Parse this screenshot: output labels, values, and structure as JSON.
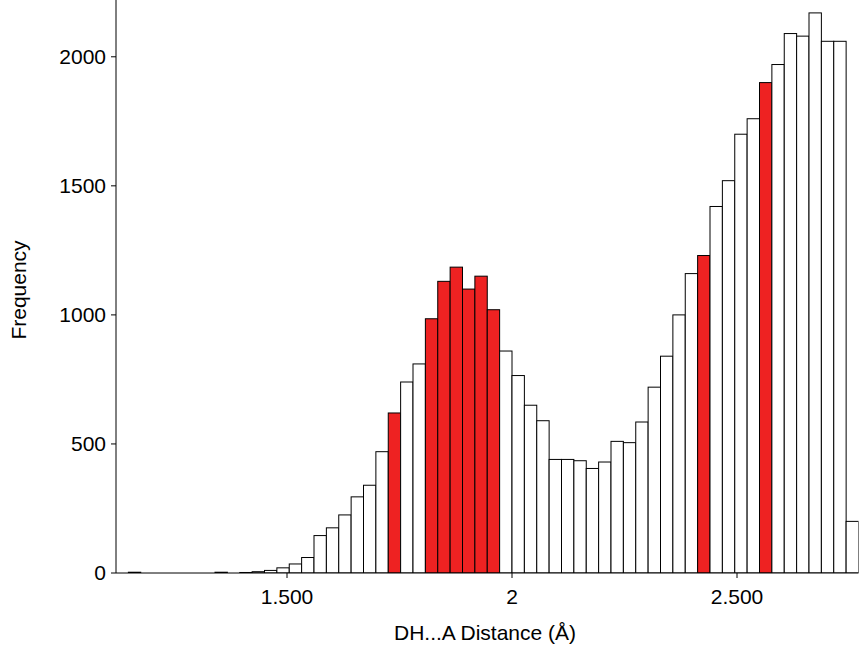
{
  "chart_data": {
    "type": "histogram",
    "x_label": "DH...A Distance (Å)",
    "y_label": "Frequency",
    "bins": [
      1.1475,
      1.175,
      1.2025,
      1.23,
      1.2575,
      1.285,
      1.3125,
      1.34,
      1.3675,
      1.395,
      1.4225,
      1.45,
      1.4775,
      1.505,
      1.5325,
      1.56,
      1.5875,
      1.615,
      1.6425,
      1.67,
      1.6975,
      1.725,
      1.7525,
      1.78,
      1.8075,
      1.835,
      1.8625,
      1.89,
      1.9175,
      1.945,
      1.9725,
      2.0,
      2.0275,
      2.055,
      2.0825,
      2.11,
      2.1375,
      2.165,
      2.1925,
      2.22,
      2.2475,
      2.275,
      2.3025,
      2.33,
      2.3575,
      2.385,
      2.4125,
      2.44,
      2.4675,
      2.495,
      2.5225,
      2.55,
      2.5775,
      2.605,
      2.6325,
      2.66,
      2.6875,
      2.715,
      2.7425,
      2.77
    ],
    "values": [
      3,
      0,
      0,
      0,
      0,
      0,
      0,
      3,
      0,
      2,
      5,
      10,
      20,
      35,
      60,
      145,
      175,
      225,
      295,
      340,
      470,
      620,
      740,
      810,
      985,
      1130,
      1185,
      1100,
      1150,
      1020,
      860,
      765,
      650,
      590,
      440,
      440,
      435,
      405,
      430,
      510,
      505,
      585,
      720,
      840,
      1000,
      1160,
      1230,
      1420,
      1520,
      1700,
      1760,
      1900,
      1970,
      2090,
      2080,
      2170,
      2060,
      2060,
      200
    ],
    "colors": [
      "#ffffff",
      "#ffffff",
      "#ffffff",
      "#ffffff",
      "#ffffff",
      "#ffffff",
      "#ffffff",
      "#ffffff",
      "#ffffff",
      "#ffffff",
      "#ffffff",
      "#ffffff",
      "#ffffff",
      "#ffffff",
      "#ffffff",
      "#ffffff",
      "#ffffff",
      "#ffffff",
      "#ffffff",
      "#ffffff",
      "#ffffff",
      "#ee2222",
      "#ffffff",
      "#ffffff",
      "#ee2222",
      "#ee2222",
      "#ee2222",
      "#ee2222",
      "#ee2222",
      "#ee2222",
      "#ffffff",
      "#ffffff",
      "#ffffff",
      "#ffffff",
      "#ffffff",
      "#ffffff",
      "#ffffff",
      "#ffffff",
      "#ffffff",
      "#ffffff",
      "#ffffff",
      "#ffffff",
      "#ffffff",
      "#ffffff",
      "#ffffff",
      "#ffffff",
      "#ee2222",
      "#ffffff",
      "#ffffff",
      "#ffffff",
      "#ffffff",
      "#ee2222",
      "#ffffff",
      "#ffffff",
      "#ffffff",
      "#ffffff",
      "#ffffff",
      "#ffffff",
      "#ffffff"
    ],
    "xlim": [
      1.12,
      2.77
    ],
    "ylim": [
      0,
      2220
    ],
    "xticks": [
      {
        "value": 1.5,
        "label": "1.500"
      },
      2,
      {
        "value": 2.5,
        "label": "2.500"
      }
    ],
    "yticks": [
      0,
      500,
      1000,
      1500,
      2000
    ],
    "grid": false
  }
}
